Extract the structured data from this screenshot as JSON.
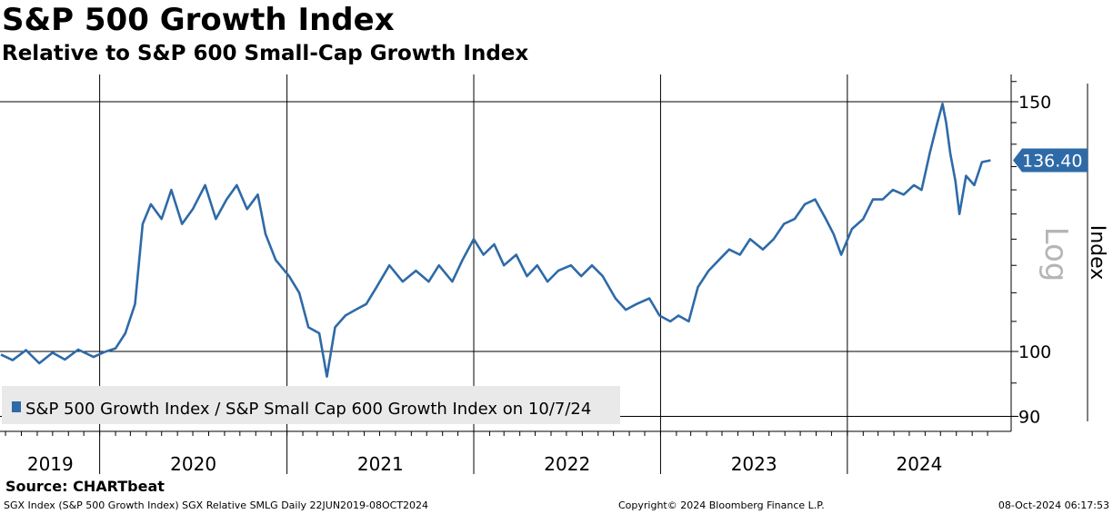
{
  "chart_data": {
    "type": "line",
    "title": "S&P 500 Growth Index",
    "subtitle": "Relative to S&P 600 Small-Cap Growth Index",
    "ylabel": "Index",
    "yscale_label": "Log",
    "yscale": "log",
    "ylim": [
      88,
      158
    ],
    "y_ticks": [
      90,
      100,
      150
    ],
    "x_ticks": [
      "2019",
      "2020",
      "2021",
      "2022",
      "2023",
      "2024"
    ],
    "xlim": [
      "2019-06-22",
      "2024-10-08"
    ],
    "grid": true,
    "legend_position": "bottom-left",
    "series": [
      {
        "name": "S&P 500 Growth Index / S&P Small Cap 600 Growth Index on 10/7/24",
        "color": "#2e6aa8",
        "last_value_label": "136.40",
        "points": [
          [
            "2019-06-22",
            99.5
          ],
          [
            "2019-07-15",
            98.6
          ],
          [
            "2019-08-10",
            100.2
          ],
          [
            "2019-09-05",
            98.1
          ],
          [
            "2019-10-01",
            99.8
          ],
          [
            "2019-10-25",
            98.7
          ],
          [
            "2019-11-20",
            100.3
          ],
          [
            "2019-12-20",
            99.1
          ],
          [
            "2020-01-10",
            99.9
          ],
          [
            "2020-02-01",
            100.5
          ],
          [
            "2020-02-20",
            103.0
          ],
          [
            "2020-03-10",
            108.0
          ],
          [
            "2020-03-25",
            123.0
          ],
          [
            "2020-04-10",
            127.0
          ],
          [
            "2020-05-01",
            124.0
          ],
          [
            "2020-05-20",
            130.0
          ],
          [
            "2020-06-10",
            123.0
          ],
          [
            "2020-07-01",
            126.0
          ],
          [
            "2020-07-25",
            131.0
          ],
          [
            "2020-08-15",
            124.0
          ],
          [
            "2020-09-05",
            128.0
          ],
          [
            "2020-09-25",
            131.0
          ],
          [
            "2020-10-15",
            126.0
          ],
          [
            "2020-11-05",
            129.0
          ],
          [
            "2020-11-20",
            121.0
          ],
          [
            "2020-12-10",
            116.0
          ],
          [
            "2021-01-05",
            113.0
          ],
          [
            "2021-01-25",
            110.0
          ],
          [
            "2021-02-12",
            104.0
          ],
          [
            "2021-03-05",
            103.0
          ],
          [
            "2021-03-20",
            96.0
          ],
          [
            "2021-04-05",
            104.0
          ],
          [
            "2021-04-25",
            106.0
          ],
          [
            "2021-05-15",
            107.0
          ],
          [
            "2021-06-05",
            108.0
          ],
          [
            "2021-06-25",
            111.0
          ],
          [
            "2021-07-20",
            115.0
          ],
          [
            "2021-08-15",
            112.0
          ],
          [
            "2021-09-10",
            114.0
          ],
          [
            "2021-10-05",
            112.0
          ],
          [
            "2021-10-25",
            115.0
          ],
          [
            "2021-11-20",
            112.0
          ],
          [
            "2021-12-10",
            116.0
          ],
          [
            "2022-01-01",
            120.0
          ],
          [
            "2022-01-20",
            117.0
          ],
          [
            "2022-02-10",
            119.0
          ],
          [
            "2022-03-01",
            115.0
          ],
          [
            "2022-03-25",
            117.0
          ],
          [
            "2022-04-15",
            113.0
          ],
          [
            "2022-05-05",
            115.0
          ],
          [
            "2022-05-25",
            112.0
          ],
          [
            "2022-06-15",
            114.0
          ],
          [
            "2022-07-10",
            115.0
          ],
          [
            "2022-07-30",
            113.0
          ],
          [
            "2022-08-20",
            115.0
          ],
          [
            "2022-09-10",
            113.0
          ],
          [
            "2022-10-05",
            109.0
          ],
          [
            "2022-10-25",
            107.0
          ],
          [
            "2022-11-15",
            108.0
          ],
          [
            "2022-12-10",
            109.0
          ],
          [
            "2022-12-30",
            106.0
          ],
          [
            "2023-01-20",
            105.0
          ],
          [
            "2023-02-05",
            106.0
          ],
          [
            "2023-02-25",
            105.0
          ],
          [
            "2023-03-15",
            111.0
          ],
          [
            "2023-04-05",
            114.0
          ],
          [
            "2023-04-25",
            116.0
          ],
          [
            "2023-05-15",
            118.0
          ],
          [
            "2023-06-05",
            117.0
          ],
          [
            "2023-06-25",
            120.0
          ],
          [
            "2023-07-20",
            118.0
          ],
          [
            "2023-08-10",
            120.0
          ],
          [
            "2023-08-30",
            123.0
          ],
          [
            "2023-09-20",
            124.0
          ],
          [
            "2023-10-10",
            127.0
          ],
          [
            "2023-10-30",
            128.0
          ],
          [
            "2023-11-20",
            124.0
          ],
          [
            "2023-12-05",
            121.0
          ],
          [
            "2023-12-20",
            117.0
          ],
          [
            "2024-01-10",
            122.0
          ],
          [
            "2024-02-01",
            124.0
          ],
          [
            "2024-02-20",
            128.0
          ],
          [
            "2024-03-10",
            128.0
          ],
          [
            "2024-03-30",
            130.0
          ],
          [
            "2024-04-20",
            129.0
          ],
          [
            "2024-05-10",
            131.0
          ],
          [
            "2024-05-25",
            130.0
          ],
          [
            "2024-06-10",
            138.0
          ],
          [
            "2024-06-25",
            145.0
          ],
          [
            "2024-07-05",
            149.5
          ],
          [
            "2024-07-12",
            145.0
          ],
          [
            "2024-07-20",
            138.0
          ],
          [
            "2024-07-30",
            132.0
          ],
          [
            "2024-08-07",
            125.0
          ],
          [
            "2024-08-20",
            133.0
          ],
          [
            "2024-09-05",
            131.0
          ],
          [
            "2024-09-20",
            136.0
          ],
          [
            "2024-10-07",
            136.4
          ]
        ]
      }
    ]
  },
  "source": "Source: CHARTbeat",
  "footer": {
    "left": "SGX Index (S&P 500 Growth Index) SGX Relative SMLG  Daily 22JUN2019-08OCT2024",
    "middle": "Copyright© 2024 Bloomberg Finance L.P.",
    "right": "08-Oct-2024 06:17:53"
  }
}
